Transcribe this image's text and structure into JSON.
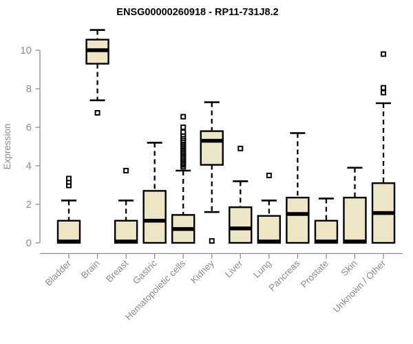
{
  "chart_data": {
    "type": "boxplot",
    "title": "ENSG00000260918 - RP11-731J8.2",
    "ylabel": "Expression",
    "xlabel": "",
    "ylim": [
      0,
      11.25
    ],
    "y_ticks": [
      0,
      2,
      4,
      6,
      8,
      10
    ],
    "grid": false,
    "legend": "none",
    "colors": {
      "box_fill": "#ECE5C6",
      "box_stroke": "#000000",
      "median": "#000000",
      "whisker": "#000000",
      "outlier_stroke": "#000000",
      "outlier_fill": "#FFFFFF",
      "axis": "#8C8C8C",
      "tick_label": "#8C8C8C",
      "title": "#000000",
      "background": "#FFFFFF"
    },
    "categories": [
      "Bladder",
      "Brain",
      "Breast",
      "Gastric",
      "Hematopoietic cells",
      "Kidney",
      "Liver",
      "Lung",
      "Pancreas",
      "Prostate",
      "Skin",
      "Unknown / Other"
    ],
    "series": [
      {
        "name": "Bladder",
        "whisker_low": 0,
        "q1": 0,
        "median": 0.07,
        "q3": 1.15,
        "whisker_high": 2.2,
        "outliers": [
          2.98,
          3.16,
          3.34
        ]
      },
      {
        "name": "Brain",
        "whisker_low": 7.4,
        "q1": 9.3,
        "median": 10.0,
        "q3": 10.55,
        "whisker_high": 11.05,
        "outliers": [
          6.75
        ]
      },
      {
        "name": "Breast",
        "whisker_low": 0,
        "q1": 0,
        "median": 0.07,
        "q3": 1.15,
        "whisker_high": 2.2,
        "outliers": [
          3.75
        ]
      },
      {
        "name": "Gastric",
        "whisker_low": 0,
        "q1": 0,
        "median": 1.15,
        "q3": 2.7,
        "whisker_high": 5.2,
        "outliers": []
      },
      {
        "name": "Hematopoietic cells",
        "whisker_low": 0,
        "q1": 0,
        "median": 0.72,
        "q3": 1.45,
        "whisker_high": 3.75,
        "outliers": [
          3.95,
          4.05,
          4.12,
          4.2,
          4.28,
          4.36,
          4.44,
          4.52,
          4.6,
          4.68,
          4.76,
          4.84,
          4.92,
          5.0,
          5.08,
          5.16,
          5.24,
          5.32,
          5.42,
          5.52,
          5.62,
          5.75,
          6.0,
          6.55
        ]
      },
      {
        "name": "Kidney",
        "whisker_low": 1.6,
        "q1": 4.05,
        "median": 5.3,
        "q3": 5.8,
        "whisker_high": 7.3,
        "outliers": [
          0.1
        ]
      },
      {
        "name": "Liver",
        "whisker_low": 0,
        "q1": 0,
        "median": 0.75,
        "q3": 1.85,
        "whisker_high": 3.2,
        "outliers": [
          4.9
        ]
      },
      {
        "name": "Lung",
        "whisker_low": 0,
        "q1": 0,
        "median": 0.07,
        "q3": 1.4,
        "whisker_high": 2.2,
        "outliers": [
          3.5
        ]
      },
      {
        "name": "Pancreas",
        "whisker_low": 0,
        "q1": 0,
        "median": 1.5,
        "q3": 2.35,
        "whisker_high": 5.7,
        "outliers": []
      },
      {
        "name": "Prostate",
        "whisker_low": 0,
        "q1": 0,
        "median": 0.07,
        "q3": 1.15,
        "whisker_high": 2.3,
        "outliers": []
      },
      {
        "name": "Skin",
        "whisker_low": 0,
        "q1": 0,
        "median": 0.07,
        "q3": 2.35,
        "whisker_high": 3.9,
        "outliers": []
      },
      {
        "name": "Unknown / Other",
        "whisker_low": 0,
        "q1": 0,
        "median": 1.55,
        "q3": 3.1,
        "whisker_high": 7.25,
        "outliers": [
          7.8,
          8.05,
          9.8
        ]
      }
    ]
  }
}
